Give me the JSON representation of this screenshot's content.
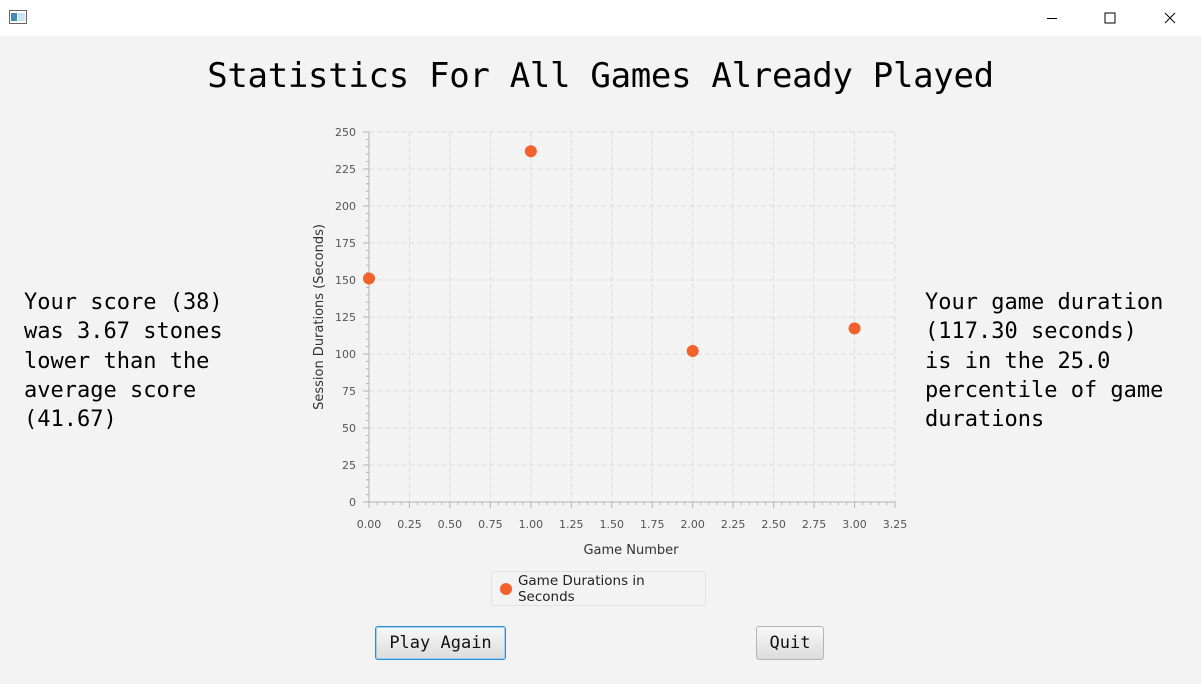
{
  "window": {
    "buttons": {
      "minimize": "minimize-icon",
      "maximize": "maximize-icon",
      "close": "close-icon"
    }
  },
  "heading": "Statistics For All Games Already Played",
  "left_text": "Your score (38)\nwas 3.67 stones\nlower than the\naverage score\n(41.67)",
  "right_text": "Your game duration\n(117.30 seconds)\nis in the 25.0\npercentile of game\ndurations",
  "legend": {
    "label": "Game Durations in Seconds"
  },
  "buttons": {
    "play_again": "Play Again",
    "quit": "Quit"
  },
  "colors": {
    "series": "#f3622d",
    "background": "#f3f3f3"
  },
  "chart_data": {
    "type": "scatter",
    "xlabel": "Game Number",
    "ylabel": "Session Durations (Seconds)",
    "xlim": [
      0,
      3.25
    ],
    "ylim": [
      0,
      250
    ],
    "x_ticks": [
      "0.00",
      "0.25",
      "0.50",
      "0.75",
      "1.00",
      "1.25",
      "1.50",
      "1.75",
      "2.00",
      "2.25",
      "2.50",
      "2.75",
      "3.00",
      "3.25"
    ],
    "y_ticks": [
      "0",
      "25",
      "50",
      "75",
      "100",
      "125",
      "150",
      "175",
      "200",
      "225",
      "250"
    ],
    "grid": true,
    "legend_position": "bottom",
    "series": [
      {
        "name": "Game Durations in Seconds",
        "points": [
          {
            "x": 0,
            "y": 151
          },
          {
            "x": 1,
            "y": 237
          },
          {
            "x": 2,
            "y": 102
          },
          {
            "x": 3,
            "y": 117.3
          }
        ]
      }
    ]
  }
}
